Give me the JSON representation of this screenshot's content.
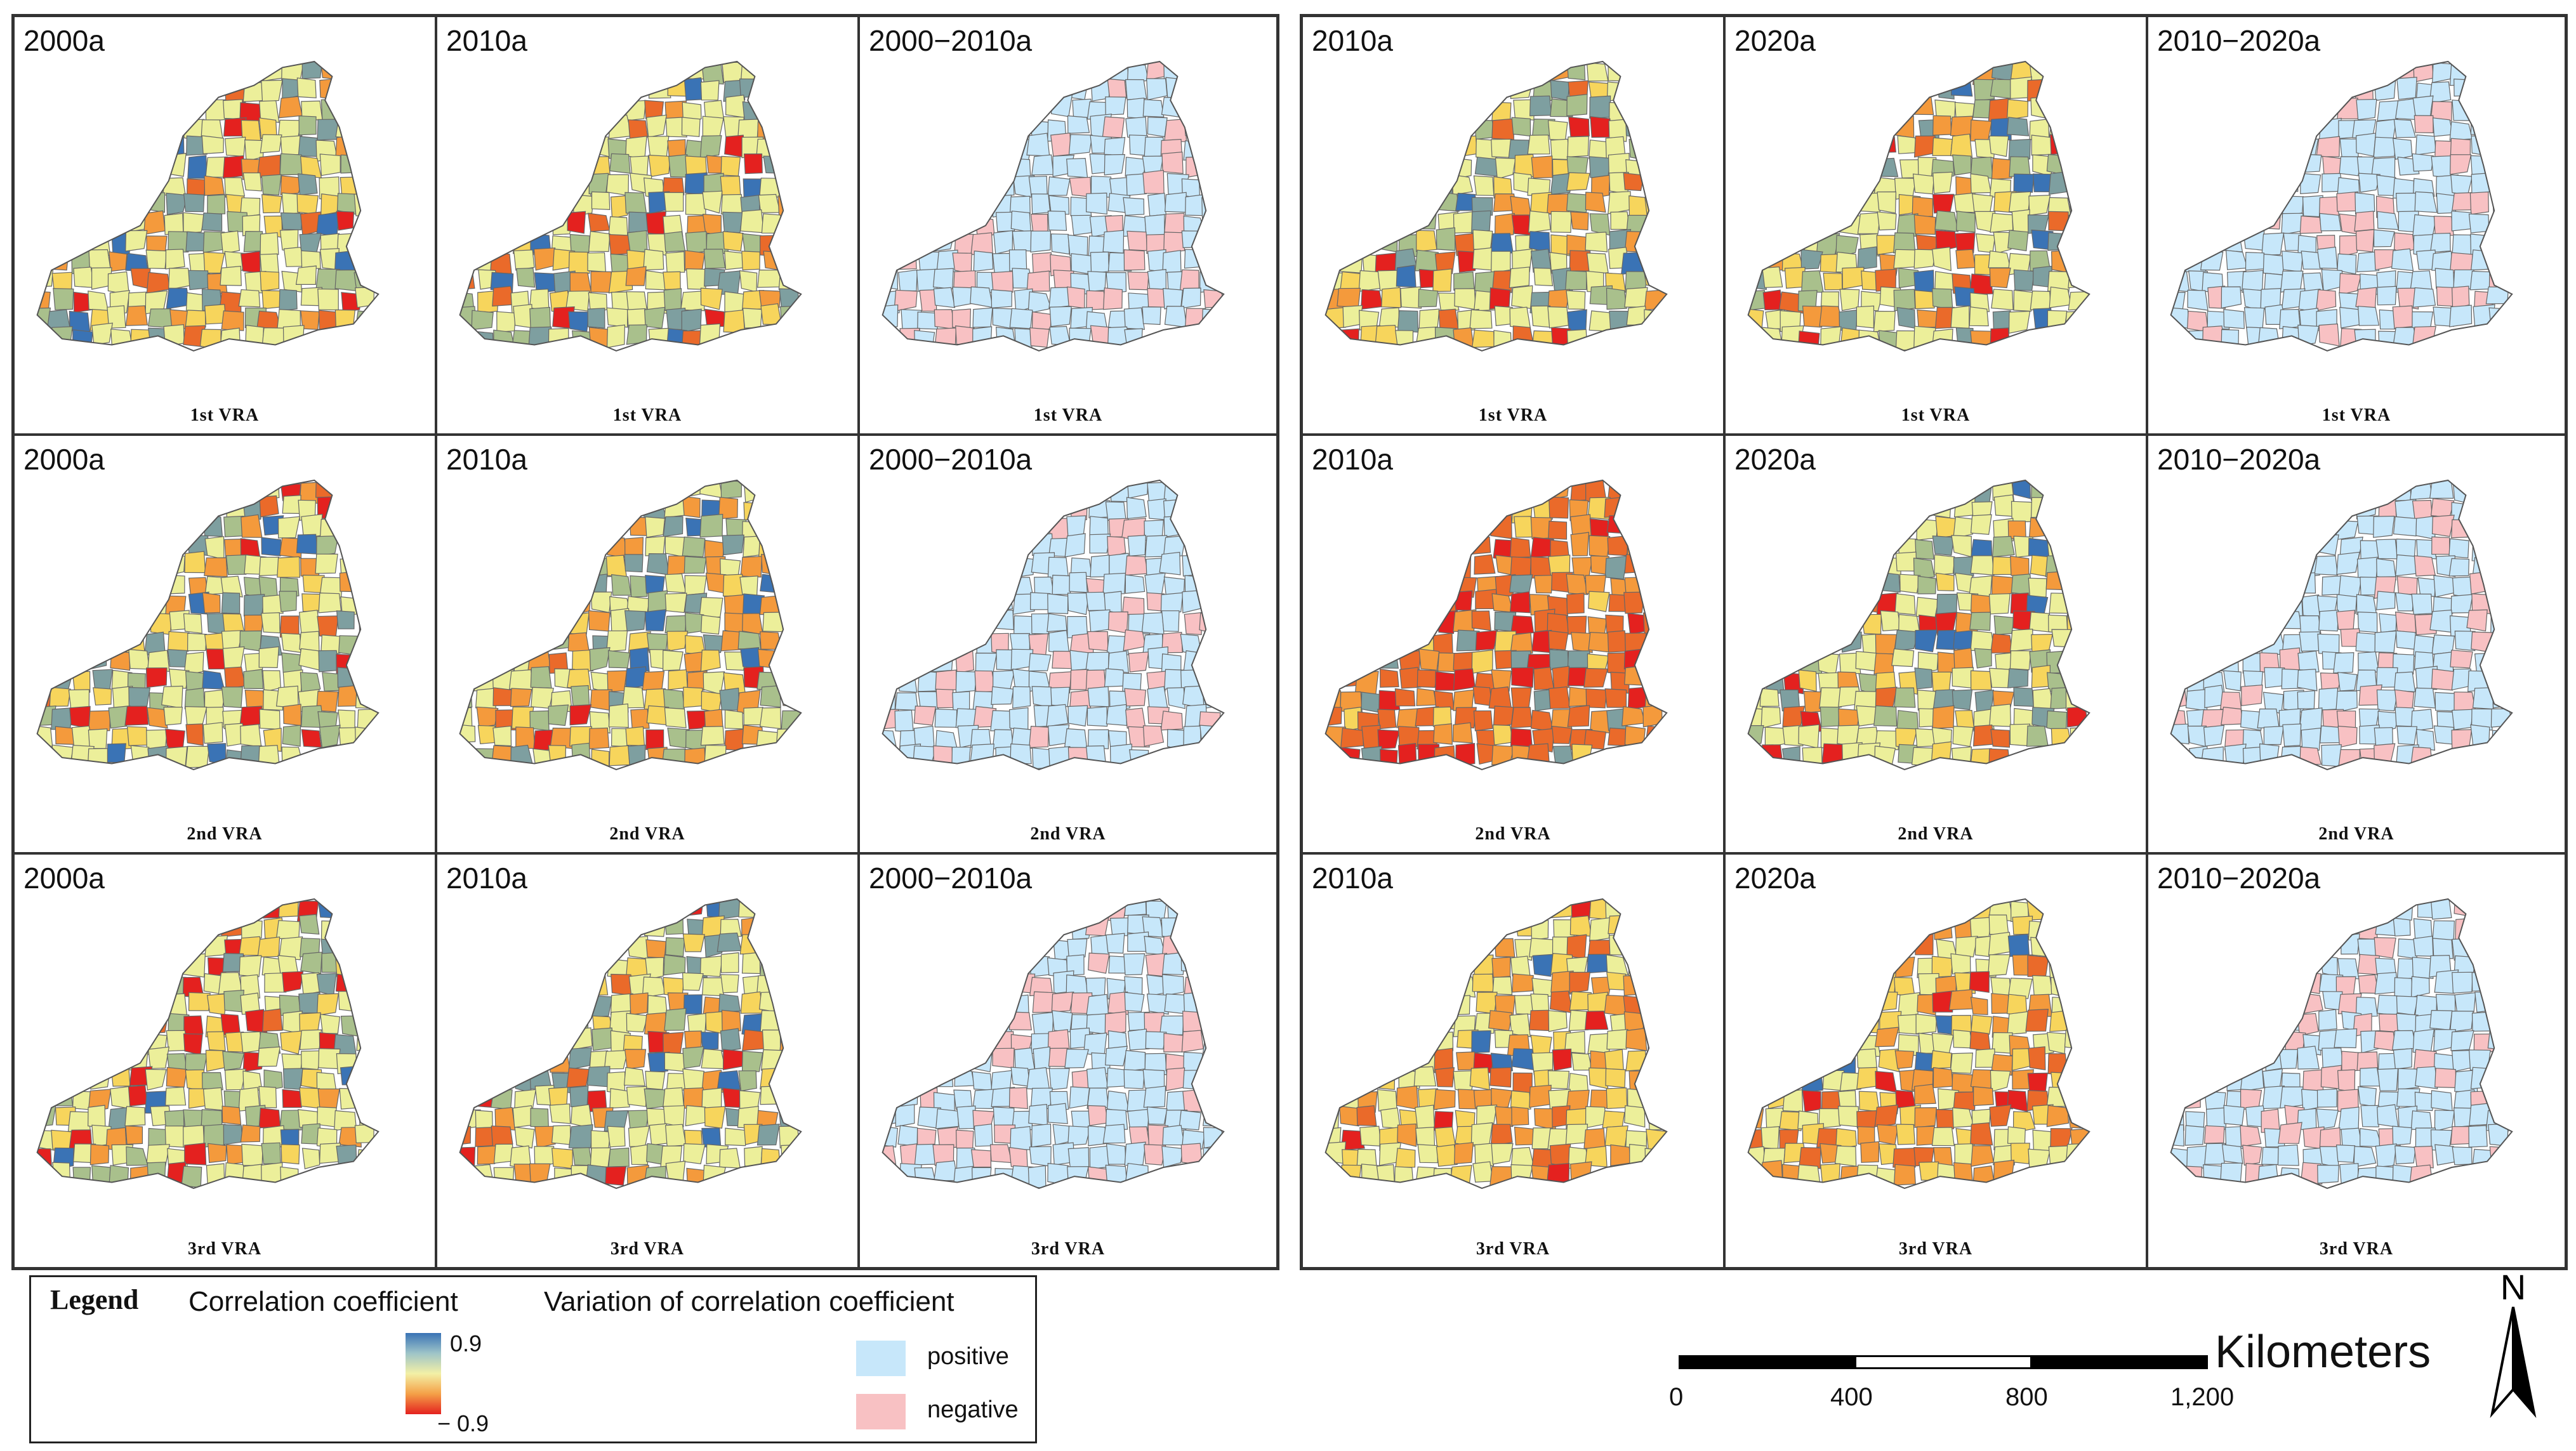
{
  "groups": [
    {
      "rows": [
        {
          "vra": "1st VRA",
          "cells": [
            {
              "year": "2000a",
              "style": "corr",
              "seed": 11
            },
            {
              "year": "2010a",
              "style": "corr",
              "seed": 12
            },
            {
              "year": "2000−2010a",
              "style": "var",
              "seed": 13
            }
          ]
        },
        {
          "vra": "2nd VRA",
          "cells": [
            {
              "year": "2000a",
              "style": "corr",
              "seed": 21
            },
            {
              "year": "2010a",
              "style": "corr",
              "seed": 22
            },
            {
              "year": "2000−2010a",
              "style": "var",
              "seed": 23
            }
          ]
        },
        {
          "vra": "3rd VRA",
          "cells": [
            {
              "year": "2000a",
              "style": "corr",
              "seed": 31
            },
            {
              "year": "2010a",
              "style": "corr",
              "seed": 32
            },
            {
              "year": "2000−2010a",
              "style": "var",
              "seed": 33
            }
          ]
        }
      ]
    },
    {
      "rows": [
        {
          "vra": "1st VRA",
          "cells": [
            {
              "year": "2010a",
              "style": "corr",
              "seed": 41
            },
            {
              "year": "2020a",
              "style": "corr",
              "seed": 42
            },
            {
              "year": "2010−2020a",
              "style": "var",
              "seed": 43
            }
          ]
        },
        {
          "vra": "2nd VRA",
          "cells": [
            {
              "year": "2010a",
              "style": "hot",
              "seed": 51
            },
            {
              "year": "2020a",
              "style": "corr",
              "seed": 52
            },
            {
              "year": "2010−2020a",
              "style": "var",
              "seed": 53
            }
          ]
        },
        {
          "vra": "3rd VRA",
          "cells": [
            {
              "year": "2010a",
              "style": "warm",
              "seed": 61
            },
            {
              "year": "2020a",
              "style": "warm",
              "seed": 62
            },
            {
              "year": "2010−2020a",
              "style": "var",
              "seed": 63
            }
          ]
        }
      ]
    }
  ],
  "legend": {
    "title": "Legend",
    "corr_label": "Correlation coefficient",
    "var_label": "Variation of correlation coefficient",
    "max": "0.9",
    "min": "− 0.9",
    "positive": "positive",
    "negative": "negative"
  },
  "scale": {
    "unit": "Kilometers",
    "ticks": [
      "0",
      "400",
      "800",
      "1,200"
    ]
  },
  "north": "N",
  "colors": {
    "blue": "#3a73b5",
    "teal": "#7e9fa0",
    "sage": "#a9c08c",
    "lightyellow": "#ecef9a",
    "yellow": "#f7d55c",
    "orange": "#f49a3c",
    "darkorange": "#ea6a2a",
    "red": "#e4211f",
    "positive": "#c7e7fa",
    "negative": "#f8c1c3",
    "border": "#666666"
  }
}
